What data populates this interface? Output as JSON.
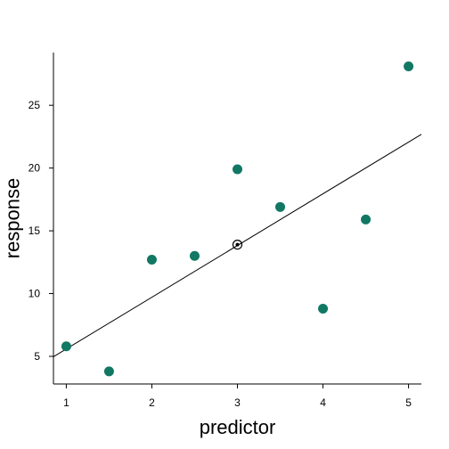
{
  "chart_data": {
    "type": "scatter",
    "title": "",
    "xlabel": "predictor",
    "ylabel": "response",
    "xlim": [
      0.85,
      5.15
    ],
    "ylim": [
      2.8,
      29.2
    ],
    "x_ticks": [
      1,
      2,
      3,
      4,
      5
    ],
    "y_ticks": [
      5,
      10,
      15,
      20,
      25
    ],
    "grid": false,
    "point_color": "#117864",
    "series": [
      {
        "x": [
          1,
          1.5,
          2,
          2.5,
          3,
          3.5,
          4,
          4.5,
          5
        ],
        "y": [
          5.8,
          3.8,
          12.7,
          13.0,
          19.9,
          16.9,
          8.8,
          15.9,
          28.1
        ]
      }
    ],
    "fit_line": {
      "intercept": 1.47,
      "slope": 4.12,
      "color": "#000000"
    },
    "mean_point": {
      "x": 3,
      "y": 13.9,
      "marker": "circled-dot"
    }
  }
}
